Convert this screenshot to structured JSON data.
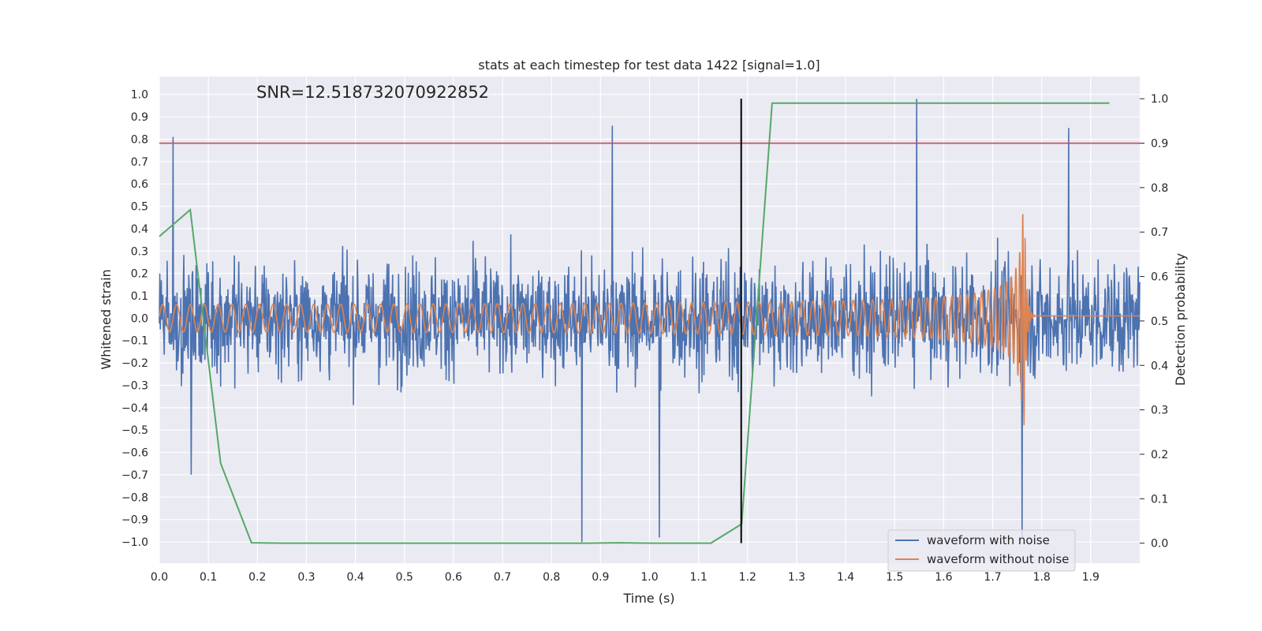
{
  "chart_data": {
    "type": "line",
    "title": "stats at each timestep for test data 1422 [signal=1.0]",
    "annotation": "SNR=12.518732070922852",
    "xlabel": "Time (s)",
    "ylabel": "Whitened strain",
    "y2label": "Detection probability",
    "xlim": [
      0.0,
      2.0
    ],
    "ylim": [
      -1.095,
      1.08
    ],
    "y2lim": [
      -0.045,
      1.05
    ],
    "x_ticks": [
      "0.0",
      "0.1",
      "0.2",
      "0.3",
      "0.4",
      "0.5",
      "0.6",
      "0.7",
      "0.8",
      "0.9",
      "1.0",
      "1.1",
      "1.2",
      "1.3",
      "1.4",
      "1.5",
      "1.6",
      "1.7",
      "1.8",
      "1.9"
    ],
    "y_ticks": [
      "1.0",
      "0.9",
      "0.8",
      "0.7",
      "0.6",
      "0.5",
      "0.4",
      "0.3",
      "0.2",
      "0.1",
      "0.0",
      "−0.1",
      "−0.2",
      "−0.3",
      "−0.4",
      "−0.5",
      "−0.6",
      "−0.7",
      "−0.8",
      "−0.9",
      "−1.0"
    ],
    "y2_ticks": [
      "1.0",
      "0.9",
      "0.8",
      "0.7",
      "0.6",
      "0.5",
      "0.4",
      "0.3",
      "0.2",
      "0.1",
      "0.0"
    ],
    "threshold": {
      "axis": "right",
      "value": 0.9,
      "color": "#c44e52"
    },
    "event_marker": {
      "x": 1.187,
      "y2_range": [
        0.0,
        1.0
      ],
      "color": "#000000"
    },
    "series": [
      {
        "name": "waveform with noise",
        "color": "#4c72b0",
        "axis": "left",
        "noise_amplitude": 0.32,
        "extremes": [
          [
            0.028,
            0.81
          ],
          [
            0.862,
            -1.0
          ],
          [
            0.924,
            0.86
          ],
          [
            1.02,
            -0.98
          ],
          [
            1.545,
            0.98
          ],
          [
            1.76,
            -0.98
          ],
          [
            1.855,
            0.85
          ],
          [
            0.065,
            -0.7
          ]
        ]
      },
      {
        "name": "waveform without noise",
        "color": "#dd8452",
        "axis": "left",
        "chirp": {
          "start_freq_hz": 35,
          "end_time": 1.765,
          "start_amp": 0.05,
          "peak_amp": 0.48,
          "ringdown_amp": 0.01
        }
      },
      {
        "name": "detection probability",
        "color": "#55a868",
        "axis": "right",
        "x": [
          0.0,
          0.063,
          0.125,
          0.188,
          0.25,
          0.313,
          0.375,
          0.438,
          0.5,
          0.563,
          0.625,
          0.688,
          0.75,
          0.813,
          0.875,
          0.938,
          1.0,
          1.063,
          1.125,
          1.188,
          1.25,
          1.313,
          1.375,
          1.438,
          1.5,
          1.563,
          1.625,
          1.688,
          1.75,
          1.813,
          1.875,
          1.938
        ],
        "values": [
          0.69,
          0.75,
          0.18,
          0.001,
          0.0,
          0.0,
          0.0,
          0.0,
          0.0,
          0.0,
          0.0,
          0.0,
          0.0,
          0.0,
          0.0,
          0.001,
          0.0,
          0.0,
          0.0,
          0.043,
          0.99,
          0.99,
          0.99,
          0.99,
          0.99,
          0.99,
          0.99,
          0.99,
          0.99,
          0.99,
          0.99,
          0.99
        ]
      }
    ],
    "legend": {
      "position": "lower-right",
      "entries": [
        {
          "label": "waveform with noise",
          "color": "#4c72b0"
        },
        {
          "label": "waveform without noise",
          "color": "#dd8452"
        }
      ]
    }
  }
}
